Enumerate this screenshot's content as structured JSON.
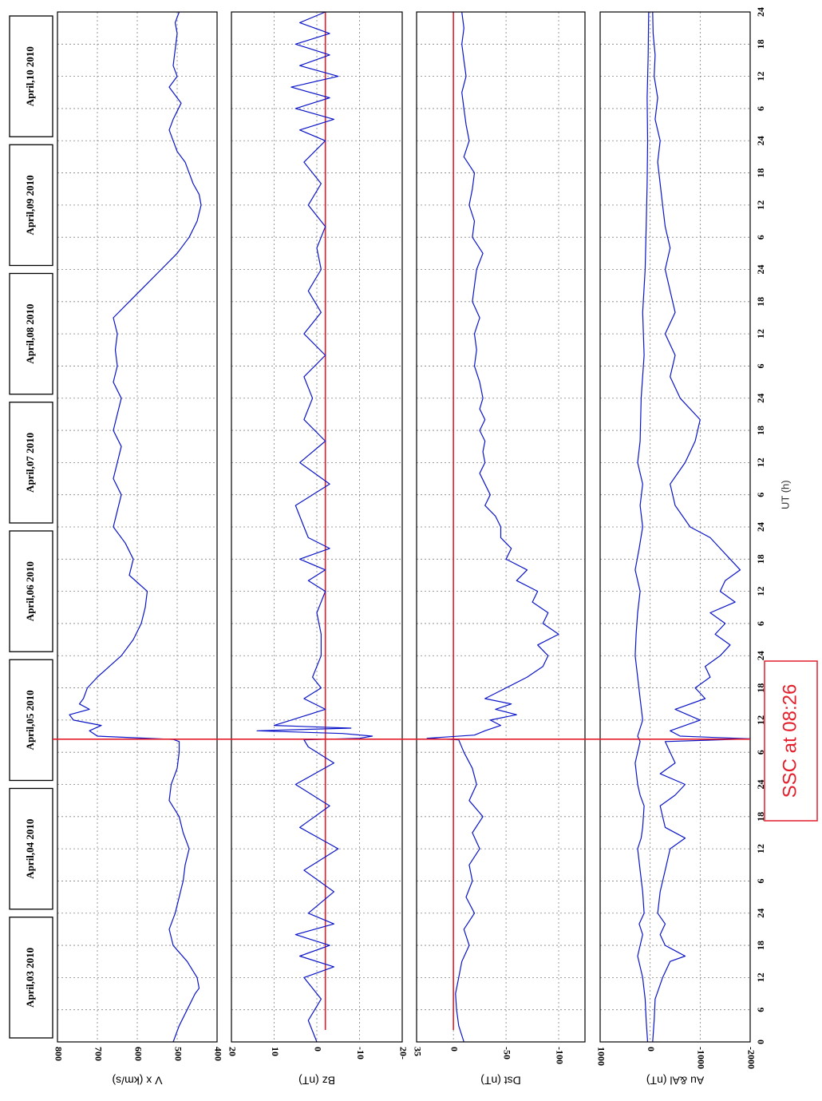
{
  "chart_data": {
    "type": "line",
    "orientation": "rotated 90 degrees clockwise (time runs from bottom to top)",
    "title": "",
    "shared_x": {
      "label": "UT (h)",
      "day_hours": 24,
      "days": 8,
      "range": [
        0,
        192
      ],
      "tick_labels": [
        "0",
        "6",
        "12",
        "18",
        "24",
        "6",
        "12",
        "18",
        "24",
        "6",
        "12",
        "18",
        "24",
        "6",
        "12",
        "18",
        "24",
        "6",
        "12",
        "18",
        "24",
        "6",
        "12",
        "18",
        "24",
        "6",
        "12",
        "18",
        "24",
        "6",
        "12",
        "18",
        "24"
      ]
    },
    "days": [
      "April,03 2010",
      "April,04 2010",
      "April,05 2010",
      "April,06 2010",
      "April,07 2010",
      "April,08 2010",
      "April,09 2010",
      "April,10 2010"
    ],
    "annotation": {
      "text": "SSC at 08:26",
      "x_hours": 56.43,
      "color": "#e41e2a"
    },
    "colors": {
      "series": "#0a14c8",
      "reference": "#e41e2a",
      "grid": "#808080"
    },
    "panels": [
      {
        "id": "vx",
        "ylabel": "V x (km/s)",
        "ylim": [
          400,
          800
        ],
        "yticks": [
          400,
          500,
          600,
          700,
          800
        ],
        "ytick_labels": [
          "400",
          "500",
          "600",
          "700",
          "800"
        ],
        "reference_y": null,
        "x": [
          0,
          3,
          6,
          9,
          10,
          12,
          15,
          18,
          21,
          24,
          27,
          30,
          33,
          36,
          39,
          42,
          45,
          48,
          51,
          54,
          56,
          56.4,
          57,
          58,
          59,
          60,
          61,
          62,
          63,
          64,
          66,
          68,
          70,
          72,
          75,
          78,
          81,
          84,
          87,
          90,
          93,
          96,
          99,
          102,
          105,
          108,
          111,
          114,
          117,
          120,
          123,
          126,
          129,
          132,
          135,
          138,
          141,
          144,
          147,
          150,
          153,
          156,
          158,
          160,
          162,
          164,
          166,
          168,
          170,
          172,
          175,
          178,
          180,
          182,
          185,
          188,
          190,
          192
        ],
        "y": [
          510,
          495,
          475,
          455,
          445,
          450,
          475,
          510,
          520,
          505,
          495,
          485,
          480,
          470,
          485,
          495,
          520,
          515,
          500,
          495,
          495,
          510,
          700,
          720,
          690,
          760,
          770,
          720,
          745,
          735,
          725,
          700,
          670,
          640,
          610,
          590,
          580,
          575,
          620,
          610,
          630,
          660,
          650,
          640,
          660,
          650,
          640,
          660,
          650,
          640,
          660,
          650,
          655,
          650,
          660,
          620,
          580,
          540,
          500,
          470,
          450,
          440,
          445,
          460,
          470,
          480,
          500,
          510,
          520,
          510,
          490,
          520,
          500,
          510,
          505,
          500,
          505,
          495
        ]
      },
      {
        "id": "bz",
        "ylabel": "Bz (nT)",
        "ylim": [
          -20,
          20
        ],
        "yticks": [
          -20,
          -10,
          0,
          10,
          20
        ],
        "ytick_labels": [
          "20-",
          "-10",
          "0",
          "10",
          "20"
        ],
        "reference_y": -2,
        "x": [
          0,
          4,
          8,
          12,
          14,
          16,
          18,
          20,
          22,
          24,
          28,
          32,
          36,
          40,
          44,
          48,
          52,
          55,
          56.3,
          56.6,
          57,
          57.5,
          58,
          58.5,
          59,
          60,
          62,
          64,
          66,
          68,
          70,
          72,
          76,
          80,
          84,
          86,
          88,
          90,
          92,
          94,
          96,
          100,
          104,
          108,
          112,
          116,
          120,
          124,
          128,
          132,
          136,
          140,
          144,
          148,
          152,
          156,
          160,
          164,
          168,
          170,
          172,
          174,
          176,
          178,
          180,
          182,
          184,
          186,
          188,
          190,
          192
        ],
        "y": [
          0,
          2,
          -1,
          3,
          -4,
          4,
          -3,
          5,
          -4,
          2,
          -4,
          3,
          -5,
          4,
          -3,
          5,
          -4,
          2,
          3,
          -10,
          -13,
          -6,
          14,
          -8,
          10,
          6,
          -2,
          3,
          -1,
          1,
          0,
          -1,
          -1,
          0,
          -2,
          2,
          -2,
          4,
          -3,
          2,
          3,
          5,
          -3,
          4,
          -2,
          3,
          1,
          3,
          -2,
          3,
          -1,
          2,
          -1,
          0,
          -2,
          2,
          -1,
          3,
          -2,
          4,
          -4,
          5,
          -3,
          6,
          -5,
          4,
          -3,
          5,
          -3,
          4,
          -2
        ]
      },
      {
        "id": "dst",
        "ylabel": "Dst (nT)",
        "ylim": [
          -125,
          35
        ],
        "yticks": [
          -100,
          -50,
          0,
          35
        ],
        "ytick_labels": [
          "-100",
          "-50",
          "0",
          "35"
        ],
        "reference_y": 0,
        "x": [
          0,
          3,
          6,
          9,
          12,
          15,
          18,
          21,
          24,
          27,
          30,
          33,
          36,
          39,
          42,
          45,
          48,
          51,
          54,
          56.3,
          56.6,
          57.2,
          58,
          59,
          60,
          61,
          62,
          63,
          64,
          66,
          68,
          70,
          72,
          74,
          76,
          78,
          80,
          82,
          84,
          86,
          88,
          90,
          92,
          94,
          96,
          98,
          100,
          102,
          104,
          106,
          108,
          110,
          112,
          114,
          116,
          118,
          120,
          123,
          126,
          129,
          132,
          135,
          138,
          141,
          144,
          147,
          150,
          153,
          156,
          159,
          162,
          165,
          168,
          171,
          174,
          177,
          180,
          183,
          186,
          189,
          192
        ],
        "y": [
          -10,
          -5,
          -3,
          -2,
          -5,
          -8,
          -15,
          -10,
          -20,
          -12,
          -18,
          -15,
          -25,
          -18,
          -28,
          -15,
          -22,
          -18,
          -10,
          -5,
          25,
          -20,
          -30,
          -45,
          -35,
          -60,
          -40,
          -55,
          -30,
          -50,
          -70,
          -85,
          -90,
          -80,
          -100,
          -85,
          -90,
          -75,
          -80,
          -60,
          -70,
          -50,
          -55,
          -45,
          -45,
          -40,
          -30,
          -35,
          -30,
          -25,
          -30,
          -28,
          -30,
          -25,
          -30,
          -25,
          -28,
          -25,
          -20,
          -22,
          -20,
          -25,
          -18,
          -20,
          -22,
          -28,
          -18,
          -20,
          -15,
          -18,
          -20,
          -10,
          -15,
          -12,
          -10,
          -8,
          -12,
          -10,
          -8,
          -10,
          -8
        ]
      },
      {
        "id": "au_al",
        "ylabel": "Au &Al (nT)",
        "ylim": [
          -2000,
          1000
        ],
        "yticks": [
          -2000,
          -1000,
          0,
          1000
        ],
        "ytick_labels": [
          "-2000",
          "-1000",
          "0",
          "1000"
        ],
        "reference_y": null,
        "series": [
          {
            "name": "",
            "x": [
              0,
              4,
              8,
              12,
              16,
              18,
              20,
              22,
              24,
              28,
              32,
              36,
              38,
              40,
              44,
              46,
              48,
              52,
              56,
              57,
              60,
              64,
              68,
              72,
              76,
              80,
              84,
              88,
              92,
              96,
              100,
              104,
              108,
              112,
              120,
              128,
              136,
              144,
              152,
              160,
              168,
              176,
              184,
              192
            ],
            "y": [
              50,
              80,
              100,
              150,
              250,
              200,
              150,
              220,
              120,
              150,
              200,
              250,
              180,
              150,
              120,
              200,
              250,
              300,
              200,
              250,
              150,
              200,
              250,
              300,
              280,
              250,
              200,
              300,
              220,
              150,
              200,
              150,
              250,
              200,
              180,
              120,
              150,
              100,
              80,
              60,
              50,
              60,
              40,
              30
            ]
          },
          {
            "name": "",
            "x": [
              0,
              4,
              8,
              12,
              15,
              16,
              17,
              18,
              20,
              22,
              24,
              28,
              32,
              36,
              38,
              40,
              44,
              46,
              48,
              50,
              52,
              54,
              56,
              56.5,
              57,
              58,
              60,
              62,
              64,
              66,
              68,
              70,
              72,
              74,
              76,
              78,
              80,
              82,
              84,
              86,
              88,
              90,
              92,
              94,
              96,
              100,
              104,
              108,
              112,
              116,
              120,
              124,
              128,
              132,
              136,
              140,
              144,
              148,
              152,
              156,
              160,
              164,
              168,
              172,
              176,
              180,
              184,
              188,
              192
            ],
            "y": [
              -50,
              -80,
              -100,
              -250,
              -400,
              -700,
              -500,
              -300,
              -200,
              -300,
              -150,
              -200,
              -300,
              -400,
              -700,
              -300,
              -200,
              -500,
              -700,
              -200,
              -500,
              -400,
              -300,
              -2000,
              -600,
              -400,
              -1000,
              -500,
              -1100,
              -900,
              -1200,
              -1100,
              -1400,
              -1600,
              -1300,
              -1500,
              -1200,
              -1700,
              -1400,
              -1500,
              -1800,
              -1600,
              -1400,
              -1200,
              -800,
              -500,
              -400,
              -700,
              -900,
              -1000,
              -600,
              -400,
              -500,
              -300,
              -500,
              -400,
              -300,
              -400,
              -300,
              -250,
              -200,
              -150,
              -200,
              -100,
              -150,
              -80,
              -100,
              -60,
              -50
            ]
          }
        ]
      }
    ]
  }
}
